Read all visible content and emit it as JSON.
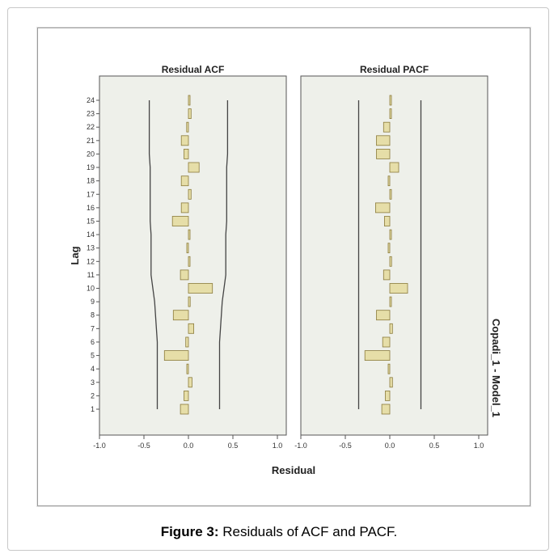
{
  "chart_data": {
    "type": "bar",
    "orientation": "horizontal",
    "categories": [
      "1",
      "2",
      "3",
      "4",
      "5",
      "6",
      "7",
      "8",
      "9",
      "10",
      "11",
      "12",
      "13",
      "14",
      "15",
      "16",
      "17",
      "18",
      "19",
      "20",
      "21",
      "22",
      "23",
      "24"
    ],
    "ylabel": "Lag",
    "xlabel": "Residual",
    "xlim": [
      -1.0,
      1.0
    ],
    "xticks": [
      "-1.0",
      "-0.5",
      "0.0",
      "0.5",
      "1.0"
    ],
    "ytick_labels": [
      "1",
      "2",
      "3",
      "4",
      "5",
      "6",
      "7",
      "8",
      "9",
      "10",
      "11",
      "12",
      "13",
      "14",
      "15",
      "16",
      "17",
      "18",
      "19",
      "20",
      "21",
      "22",
      "23",
      "24"
    ],
    "side_label": "Copadi_1 - Model_1",
    "bar_color": "#e6dea8",
    "bar_edge_color": "#8a7a3a",
    "panel_bg": "#eef0ea",
    "panels": [
      {
        "title": "Residual ACF",
        "values": [
          -0.09,
          -0.05,
          0.04,
          -0.01,
          -0.27,
          -0.03,
          0.06,
          -0.17,
          0.02,
          0.27,
          -0.09,
          0.01,
          -0.01,
          0.0,
          -0.18,
          -0.08,
          0.03,
          -0.08,
          0.12,
          -0.05,
          -0.08,
          -0.02,
          0.03,
          0.0
        ],
        "upper_limit": [
          0.35,
          0.35,
          0.35,
          0.35,
          0.35,
          0.35,
          0.36,
          0.37,
          0.38,
          0.4,
          0.42,
          0.42,
          0.42,
          0.42,
          0.43,
          0.43,
          0.43,
          0.43,
          0.43,
          0.44,
          0.44,
          0.44,
          0.44,
          0.44
        ],
        "lower_limit": [
          -0.35,
          -0.35,
          -0.35,
          -0.35,
          -0.35,
          -0.35,
          -0.36,
          -0.37,
          -0.38,
          -0.4,
          -0.42,
          -0.42,
          -0.42,
          -0.42,
          -0.43,
          -0.43,
          -0.43,
          -0.43,
          -0.43,
          -0.44,
          -0.44,
          -0.44,
          -0.44,
          -0.44
        ]
      },
      {
        "title": "Residual PACF",
        "values": [
          -0.09,
          -0.05,
          0.03,
          -0.01,
          -0.28,
          -0.08,
          0.03,
          -0.15,
          0.0,
          0.2,
          -0.07,
          0.02,
          -0.01,
          0.0,
          -0.06,
          -0.16,
          0.0,
          -0.01,
          0.1,
          -0.15,
          -0.15,
          -0.07,
          0.0,
          0.01
        ],
        "upper_limit": [
          0.35,
          0.35,
          0.35,
          0.35,
          0.35,
          0.35,
          0.35,
          0.35,
          0.35,
          0.35,
          0.35,
          0.35,
          0.35,
          0.35,
          0.35,
          0.35,
          0.35,
          0.35,
          0.35,
          0.35,
          0.35,
          0.35,
          0.35,
          0.35
        ],
        "lower_limit": [
          -0.35,
          -0.35,
          -0.35,
          -0.35,
          -0.35,
          -0.35,
          -0.35,
          -0.35,
          -0.35,
          -0.35,
          -0.35,
          -0.35,
          -0.35,
          -0.35,
          -0.35,
          -0.35,
          -0.35,
          -0.35,
          -0.35,
          -0.35,
          -0.35,
          -0.35,
          -0.35,
          -0.35
        ]
      }
    ]
  },
  "caption": {
    "label": "Figure 3:",
    "text": " Residuals of ACF and PACF."
  }
}
